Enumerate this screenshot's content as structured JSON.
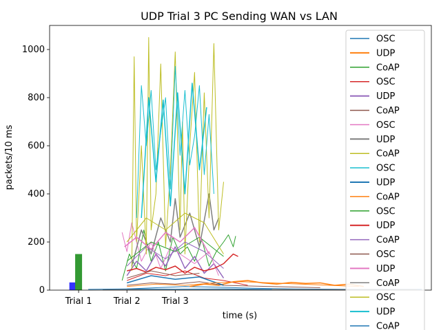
{
  "chart_data": {
    "type": "line",
    "title": "UDP Trial 3 PC Sending WAN vs LAN",
    "xlabel": "time (s)",
    "ylabel": "packets/10 ms",
    "ylim": [
      0,
      1100
    ],
    "yticks": [
      0,
      200,
      400,
      600,
      800,
      1000
    ],
    "xticks": [
      {
        "label": "Trial 1",
        "x": 1
      },
      {
        "label": "Trial 2",
        "x": 2
      },
      {
        "label": "Trial 3",
        "x": 3
      }
    ],
    "xlim": [
      0.4,
      8.3
    ],
    "grid": false,
    "legend_position": "right (overflowing bottom)",
    "bars": [
      {
        "x": 0.88,
        "value": 32,
        "color": "#3333ff"
      },
      {
        "x": 1.0,
        "value": 150,
        "color": "#339933"
      }
    ],
    "series": [
      {
        "name": "OSC",
        "color": "#1f77b4",
        "width": 1.0,
        "x": [
          2.0,
          2.6,
          3.2,
          3.9,
          4.6,
          5.5,
          6.8,
          8.1
        ],
        "y": [
          5,
          10,
          15,
          12,
          8,
          5,
          3,
          3
        ]
      },
      {
        "name": "UDP",
        "color": "#ff7f0e",
        "width": 1.5,
        "x": [
          3.3,
          3.6,
          3.9,
          4.2,
          4.5,
          4.8,
          5.1,
          5.4,
          5.7,
          6.0,
          6.3,
          6.6,
          6.9
        ],
        "y": [
          15,
          25,
          20,
          35,
          40,
          30,
          25,
          32,
          28,
          30,
          20,
          25,
          15
        ]
      },
      {
        "name": "CoAP",
        "color": "#2ca02c",
        "width": 1.0,
        "x": [
          1.9,
          2.05,
          2.2,
          2.35,
          2.5,
          2.65,
          2.8,
          2.95,
          3.1,
          3.25,
          3.4,
          3.55,
          3.7,
          3.85,
          4.0,
          4.1,
          4.2,
          4.25
        ],
        "y": [
          40,
          150,
          90,
          250,
          120,
          200,
          80,
          220,
          150,
          180,
          120,
          210,
          100,
          160,
          200,
          230,
          180,
          225
        ]
      },
      {
        "name": "OSC",
        "color": "#d62728",
        "width": 1.0,
        "x": [
          2.0,
          2.4,
          2.8,
          3.2,
          3.6,
          4.0,
          4.5
        ],
        "y": [
          40,
          70,
          60,
          80,
          50,
          40,
          20
        ]
      },
      {
        "name": "UDP",
        "color": "#9467bd",
        "width": 1.5,
        "x": [
          2.0,
          2.2,
          2.4,
          2.6,
          2.8,
          3.0,
          3.2,
          3.4,
          3.6,
          3.8,
          4.0
        ],
        "y": [
          60,
          120,
          80,
          150,
          100,
          180,
          90,
          140,
          70,
          110,
          50
        ]
      },
      {
        "name": "CoAP",
        "color": "#8c564b",
        "width": 1.0,
        "x": [
          2.0,
          2.5,
          3.0,
          3.5,
          4.0,
          5.0,
          6.0
        ],
        "y": [
          20,
          30,
          25,
          35,
          20,
          15,
          10
        ]
      },
      {
        "name": "OSC",
        "color": "#e377c2",
        "width": 1.0,
        "x": [
          1.9,
          2.0,
          2.1,
          2.3,
          2.5,
          2.7,
          2.9,
          3.1,
          3.4,
          3.7,
          3.9
        ],
        "y": [
          240,
          160,
          280,
          120,
          200,
          90,
          180,
          150,
          110,
          160,
          60
        ]
      },
      {
        "name": "UDP",
        "color": "#7f7f7f",
        "width": 1.5,
        "x": [
          2.1,
          2.3,
          2.5,
          2.7,
          2.9,
          3.0,
          3.1,
          3.3,
          3.5,
          3.7,
          3.8,
          3.9
        ],
        "y": [
          100,
          250,
          150,
          300,
          200,
          380,
          220,
          320,
          180,
          400,
          250,
          300
        ]
      },
      {
        "name": "CoAP",
        "color": "#bcbd22",
        "width": 1.0,
        "x": [
          2.1,
          2.15,
          2.2,
          2.3,
          2.4,
          2.45,
          2.5,
          2.6,
          2.7,
          2.8,
          2.9,
          3.0,
          3.1,
          3.15,
          3.2,
          3.3,
          3.4,
          3.5,
          3.6,
          3.7,
          3.8,
          3.9,
          4.0
        ],
        "y": [
          80,
          970,
          200,
          600,
          150,
          1050,
          250,
          400,
          940,
          180,
          500,
          990,
          250,
          700,
          150,
          600,
          905,
          200,
          820,
          300,
          1025,
          250,
          450
        ]
      },
      {
        "name": "OSC",
        "color": "#17becf",
        "width": 1.0,
        "x": [
          2.2,
          2.3,
          2.4,
          2.5,
          2.6,
          2.7,
          2.8,
          2.9,
          3.0,
          3.1,
          3.2,
          3.3,
          3.4,
          3.5,
          3.6,
          3.7,
          3.8
        ],
        "y": [
          300,
          850,
          600,
          830,
          500,
          660,
          800,
          420,
          930,
          560,
          830,
          520,
          640,
          850,
          480,
          730,
          400
        ]
      },
      {
        "name": "UDP",
        "color": "#1f77b4",
        "width": 1.5,
        "x": [
          2.0,
          2.5,
          3.0,
          3.5,
          4.0
        ],
        "y": [
          30,
          60,
          45,
          55,
          20
        ]
      },
      {
        "name": "CoAP",
        "color": "#ff7f0e",
        "width": 1.0,
        "x": [
          2.0,
          2.6,
          3.2,
          3.8,
          4.4,
          5.0,
          5.6,
          6.2,
          6.8
        ],
        "y": [
          15,
          25,
          20,
          30,
          35,
          30,
          25,
          20,
          15
        ]
      },
      {
        "name": "OSC",
        "color": "#2ca02c",
        "width": 1.0,
        "x": [
          2.0,
          2.5,
          3.0,
          3.5,
          4.0
        ],
        "y": [
          120,
          200,
          160,
          220,
          140
        ]
      },
      {
        "name": "UDP",
        "color": "#d62728",
        "width": 1.5,
        "x": [
          2.0,
          2.2,
          2.4,
          2.6,
          2.8,
          3.0,
          3.2,
          3.4,
          3.6,
          3.8,
          4.0,
          4.2,
          4.3
        ],
        "y": [
          80,
          90,
          75,
          95,
          85,
          100,
          70,
          95,
          80,
          90,
          110,
          150,
          140
        ]
      },
      {
        "name": "CoAP",
        "color": "#9467bd",
        "width": 1.0,
        "x": [
          2.0,
          2.4,
          2.8,
          3.2,
          3.6,
          4.0
        ],
        "y": [
          100,
          180,
          130,
          200,
          160,
          90
        ]
      },
      {
        "name": "OSC",
        "color": "#8c564b",
        "width": 1.0,
        "x": [
          2.0,
          2.5,
          3.0,
          3.5
        ],
        "y": [
          50,
          80,
          60,
          70
        ]
      },
      {
        "name": "UDP",
        "color": "#e377c2",
        "width": 1.5,
        "x": [
          1.95,
          2.2,
          2.5,
          2.8,
          3.1,
          3.4,
          3.7
        ],
        "y": [
          180,
          220,
          170,
          240,
          200,
          260,
          150
        ]
      },
      {
        "name": "CoAP",
        "color": "#7f7f7f",
        "width": 1.0,
        "x": [
          1.5,
          2.5,
          4.0,
          6.0,
          8.0
        ],
        "y": [
          2,
          3,
          3,
          2,
          2
        ]
      },
      {
        "name": "OSC",
        "color": "#bcbd22",
        "width": 1.0,
        "x": [
          2.0,
          2.4,
          2.8,
          3.2,
          3.6,
          4.0
        ],
        "y": [
          200,
          300,
          250,
          320,
          280,
          150
        ]
      },
      {
        "name": "UDP",
        "color": "#17becf",
        "width": 1.5,
        "x": [
          2.3,
          2.45,
          2.6,
          2.75,
          2.9,
          3.05,
          3.2,
          3.35,
          3.5,
          3.65
        ],
        "y": [
          300,
          800,
          450,
          790,
          350,
          820,
          400,
          860,
          500,
          760
        ]
      },
      {
        "name": "CoAP",
        "color": "#1f77b4",
        "width": 1.0,
        "x": [
          1.2,
          2.0,
          3.0,
          4.0,
          5.0
        ],
        "y": [
          3,
          5,
          4,
          5,
          3
        ]
      }
    ]
  }
}
